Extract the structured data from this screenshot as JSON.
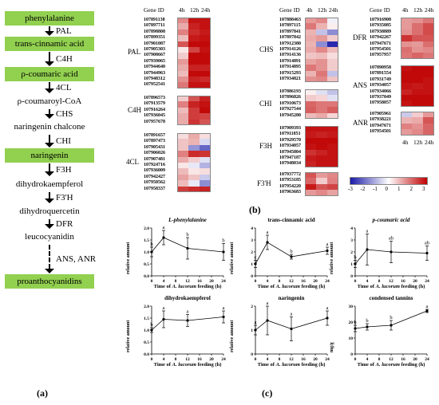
{
  "pathway": {
    "nodes": [
      "phenylalanine",
      "trans-cinnamic acid",
      "ρ-coumaric acid",
      "ρ-coumaroyl-CoA",
      "naringenin chalcone",
      "naringenin",
      "dihydrokaempferol",
      "dihydroquercetin",
      "leucocyanidin",
      "proanthocyanidins"
    ],
    "highlight": [
      true,
      true,
      true,
      false,
      false,
      true,
      false,
      false,
      false,
      true
    ],
    "enzymes": [
      "PAL",
      "C4H",
      "4CL",
      "CHS",
      "CHI",
      "F3H",
      "F3'H",
      "DFR",
      "ANS, ANR"
    ],
    "highlight_color": "#92d050"
  },
  "labels": {
    "a": "(a)",
    "b": "(b)",
    "c": "(c)"
  },
  "heatmap": {
    "header": {
      "gene_id": "Gene ID",
      "c1": "4h",
      "c2": "12h",
      "c3": "24h"
    },
    "colors": {
      "low": "#1a1aa8",
      "mid": "#ffffff",
      "high": "#c00000"
    },
    "legend_ticks": [
      "-3",
      "-2",
      "-1",
      "0",
      "1",
      "2",
      "3"
    ],
    "groups": [
      {
        "name": "PAL",
        "genes": [
          "107891138",
          "107897711",
          "107898808",
          "107899351",
          "107901087",
          "107905303",
          "107908667",
          "107939065",
          "107944640",
          "107944963",
          "107948312",
          "107952541"
        ],
        "values": [
          [
            1.4,
            2.8,
            2.8
          ],
          [
            1.0,
            2.6,
            2.8
          ],
          [
            1.5,
            2.5,
            2.7
          ],
          [
            0.8,
            2.7,
            2.8
          ],
          [
            2.0,
            2.9,
            2.9
          ],
          [
            0.3,
            2.2,
            2.8
          ],
          [
            0.6,
            2.9,
            2.9
          ],
          [
            1.2,
            2.9,
            2.9
          ],
          [
            1.0,
            2.6,
            2.6
          ],
          [
            0.8,
            2.9,
            2.9
          ],
          [
            1.3,
            2.6,
            2.5
          ],
          [
            1.6,
            2.8,
            2.8
          ]
        ]
      },
      {
        "name": "C4H",
        "genes": [
          "107896573",
          "107913579",
          "107916264",
          "107936045",
          "107957678"
        ],
        "values": [
          [
            0.6,
            2.0,
            2.6
          ],
          [
            1.5,
            2.6,
            2.8
          ],
          [
            0.8,
            2.3,
            2.9
          ],
          [
            1.0,
            2.3,
            2.2
          ],
          [
            1.0,
            2.4,
            2.0
          ]
        ]
      },
      {
        "name": "4CL",
        "genes": [
          "107891657",
          "107897473",
          "107905431",
          "107906026",
          "107907481",
          "107924716",
          "107936009",
          "107942427",
          "107950562",
          "107958337"
        ],
        "values": [
          [
            0.4,
            1.0,
            0.4
          ],
          [
            0.7,
            0.9,
            -0.5
          ],
          [
            0.7,
            -1.4,
            -2.0
          ],
          [
            1.5,
            2.5,
            2.4
          ],
          [
            1.0,
            0.6,
            -0.4
          ],
          [
            0.3,
            -0.3,
            -1.0
          ],
          [
            0.8,
            0.3,
            0.4
          ],
          [
            1.1,
            0.7,
            -0.7
          ],
          [
            0.8,
            -0.3,
            -1.5
          ],
          [
            2.3,
            2.5,
            2.6
          ]
        ]
      },
      {
        "name": "CHS",
        "genes": [
          "107888463",
          "107897115",
          "107897841",
          "107897842",
          "107912380",
          "107914126",
          "107914136",
          "107914891",
          "107914895",
          "107915293",
          "107934821"
        ],
        "values": [
          [
            1.2,
            1.4,
            -0.2
          ],
          [
            1.6,
            0.9,
            0.2
          ],
          [
            0.9,
            -0.8,
            -1.5
          ],
          [
            1.0,
            1.2,
            0.6
          ],
          [
            0.9,
            -1.5,
            -2.8
          ],
          [
            1.0,
            1.4,
            0.8
          ],
          [
            0.7,
            0.8,
            0.4
          ],
          [
            1.1,
            1.3,
            0.6
          ],
          [
            1.6,
            1.3,
            0.6
          ],
          [
            0.9,
            1.6,
            -0.8
          ],
          [
            1.3,
            1.4,
            0.7
          ]
        ]
      },
      {
        "name": "CHI",
        "genes": [
          "107886193",
          "107896826",
          "107910673",
          "107927544",
          "107945280"
        ],
        "values": [
          [
            0.2,
            -0.4,
            -0.8
          ],
          [
            0.6,
            0.5,
            -0.4
          ],
          [
            1.8,
            1.6,
            1.6
          ],
          [
            1.9,
            1.6,
            1.9
          ],
          [
            0.8,
            1.0,
            0.5
          ]
        ]
      },
      {
        "name": "F3H",
        "genes": [
          "107909393",
          "107911851",
          "107929570",
          "107934057",
          "107945804",
          "107947187",
          "107948034"
        ],
        "values": [
          [
            2.8,
            2.8,
            2.8
          ],
          [
            2.7,
            2.6,
            2.7
          ],
          [
            2.9,
            2.9,
            2.9
          ],
          [
            2.8,
            2.9,
            2.8
          ],
          [
            2.4,
            2.6,
            2.8
          ],
          [
            2.7,
            2.8,
            2.8
          ],
          [
            2.6,
            2.8,
            2.8
          ]
        ]
      },
      {
        "name": "F3'H",
        "genes": [
          "107937772",
          "107953185",
          "107954220",
          "107963683"
        ],
        "values": [
          [
            2.0,
            1.2,
            1.4
          ],
          [
            1.8,
            0.6,
            1.5
          ],
          [
            2.7,
            2.0,
            2.2
          ],
          [
            1.2,
            1.4,
            1.1
          ]
        ]
      },
      {
        "name": "DFR",
        "genes": [
          "107916908",
          "107935085",
          "107938889",
          "107942267",
          "107947671",
          "107954501",
          "107957957"
        ],
        "values": [
          [
            1.2,
            1.3,
            1.6
          ],
          [
            1.2,
            1.7,
            2.1
          ],
          [
            1.3,
            1.7,
            2.1
          ],
          [
            2.4,
            2.0,
            2.0
          ],
          [
            1.3,
            1.2,
            1.7
          ],
          [
            1.7,
            1.3,
            1.4
          ],
          [
            1.6,
            1.8,
            1.6
          ]
        ]
      },
      {
        "name": "ANS",
        "genes": [
          "107890958",
          "107891554",
          "107931749",
          "107934057",
          "107934066",
          "107937049",
          "107958057"
        ],
        "values": [
          [
            2.8,
            2.9,
            2.9
          ],
          [
            2.9,
            2.9,
            2.9
          ],
          [
            2.9,
            2.9,
            2.8
          ],
          [
            2.8,
            2.7,
            2.8
          ],
          [
            2.6,
            2.8,
            2.8
          ],
          [
            2.9,
            2.9,
            2.9
          ],
          [
            2.8,
            2.9,
            2.9
          ]
        ]
      },
      {
        "name": "ANR",
        "genes": [
          "107905961",
          "107938221",
          "107947671",
          "107954501"
        ],
        "values": [
          [
            -0.7,
            0.6,
            1.2
          ],
          [
            0.9,
            1.0,
            2.0
          ],
          [
            1.5,
            1.3,
            1.8
          ],
          [
            1.2,
            1.4,
            1.8
          ]
        ]
      }
    ],
    "bottom_header": {
      "c1": "4h",
      "c2": "12h",
      "c3": "24h"
    }
  },
  "chart_data": [
    {
      "type": "line",
      "title": "L-phenylalanine",
      "xlabel_prefix": "Time of ",
      "xlabel_species": "A. lucorum",
      "xlabel_suffix": " feeding (h)",
      "ylabel": "relative amount",
      "x": [
        0,
        4,
        12,
        24
      ],
      "y": [
        1.0,
        1.6,
        1.15,
        1.0
      ],
      "err": [
        0.2,
        0.3,
        0.45,
        0.35
      ],
      "letters": [
        "b",
        "a",
        "b",
        "b"
      ],
      "ylim": [
        0,
        2.0
      ],
      "yticks": [
        "0.0",
        "0.5",
        "1.0",
        "1.5",
        "2.0"
      ],
      "xticks": [
        "0",
        "4",
        "8",
        "12",
        "16",
        "20",
        "24"
      ]
    },
    {
      "type": "line",
      "title": "trans-cinnamic acid",
      "xlabel_prefix": "Time of ",
      "xlabel_species": "A. lucorum",
      "xlabel_suffix": " feeding (h)",
      "ylabel": "relative amount",
      "x": [
        0,
        4,
        12,
        24
      ],
      "y": [
        1.0,
        2.8,
        1.6,
        2.1
      ],
      "err": [
        0.3,
        0.6,
        0.2,
        0.3
      ],
      "letters": [
        "c",
        "a",
        "b",
        "a"
      ],
      "ylim": [
        0,
        4
      ],
      "yticks": [
        "0",
        "1",
        "2",
        "3",
        "4"
      ],
      "xticks": [
        "0",
        "4",
        "8",
        "12",
        "16",
        "20",
        "24"
      ]
    },
    {
      "type": "line",
      "title": "p-coumaric acid",
      "xlabel_prefix": "Time of ",
      "xlabel_species": "A. lucorum",
      "xlabel_suffix": " feeding (h)",
      "ylabel": "relative amount",
      "x": [
        0,
        4,
        12,
        24
      ],
      "y": [
        1.0,
        2.2,
        2.0,
        1.9
      ],
      "err": [
        0.3,
        1.3,
        0.9,
        0.6
      ],
      "letters": [
        "b",
        "a",
        "ab",
        "ab"
      ],
      "ylim": [
        0,
        4
      ],
      "yticks": [
        "0",
        "1",
        "2",
        "3",
        "4"
      ],
      "xticks": [
        "0",
        "4",
        "8",
        "12",
        "16",
        "20",
        "24"
      ]
    },
    {
      "type": "line",
      "title": "dihydrokaempferol",
      "xlabel_prefix": "Time of ",
      "xlabel_species": "A. lucorum",
      "xlabel_suffix": " feeding (h)",
      "ylabel": "relative amount",
      "x": [
        0,
        4,
        12,
        24
      ],
      "y": [
        1.0,
        1.45,
        1.4,
        1.55
      ],
      "err": [
        0.1,
        0.35,
        0.25,
        0.25
      ],
      "letters": [
        "b",
        "a",
        "a",
        "a"
      ],
      "ylim": [
        0,
        2.0
      ],
      "yticks": [
        "0.0",
        "0.5",
        "1.0",
        "1.5",
        "2.0"
      ],
      "xticks": [
        "0",
        "4",
        "8",
        "12",
        "16",
        "20",
        "24"
      ]
    },
    {
      "type": "line",
      "title": "naringenin",
      "xlabel_prefix": "Time of ",
      "xlabel_species": "A. lucorum",
      "xlabel_suffix": " feeding (h)",
      "ylabel": "relative amount",
      "x": [
        0,
        4,
        12,
        24
      ],
      "y": [
        1.0,
        1.4,
        1.05,
        1.5
      ],
      "err": [
        0.2,
        0.6,
        0.5,
        0.3
      ],
      "letters": [
        "a",
        "a",
        "a",
        "a"
      ],
      "ylim": [
        0,
        2
      ],
      "yticks": [
        "0",
        "1",
        "2"
      ],
      "xticks": [
        "0",
        "4",
        "8",
        "12",
        "16",
        "20",
        "24"
      ]
    },
    {
      "type": "line",
      "title": "condensed tannins",
      "xlabel_prefix": "Time of ",
      "xlabel_species": "A. lucorum",
      "xlabel_suffix": " feeding (h)",
      "ylabel": "mg/g",
      "x": [
        0,
        4,
        12,
        24
      ],
      "y": [
        16,
        17,
        18,
        27
      ],
      "err": [
        2,
        2,
        3,
        1
      ],
      "letters": [
        "b",
        "b",
        "b",
        "a"
      ],
      "ylim": [
        0,
        30
      ],
      "yticks": [
        "0",
        "10",
        "20",
        "30"
      ],
      "xticks": [
        "0",
        "4",
        "8",
        "12",
        "16",
        "20",
        "24"
      ]
    }
  ]
}
